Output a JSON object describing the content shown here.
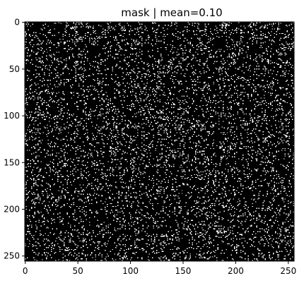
{
  "chart_data": {
    "type": "heatmap",
    "title": "mask | mean=0.10",
    "colormap": "gray",
    "colors": {
      "zero": "#000000",
      "one": "#ffffff"
    },
    "value_range": [
      0,
      1
    ],
    "image_width": 256,
    "image_height": 256,
    "mask_mean": 0.1,
    "xlim": [
      -0.5,
      255.5
    ],
    "ylim": [
      255.5,
      -0.5
    ],
    "x_ticks": [
      0,
      50,
      100,
      150,
      200,
      250
    ],
    "x_tick_labels": [
      "0",
      "50",
      "100",
      "150",
      "200",
      "250"
    ],
    "y_ticks": [
      0,
      50,
      100,
      150,
      200,
      250
    ],
    "y_tick_labels": [
      "0",
      "50",
      "100",
      "150",
      "200",
      "250"
    ],
    "xlabel": "",
    "ylabel": "",
    "grid": false,
    "legend": false
  }
}
